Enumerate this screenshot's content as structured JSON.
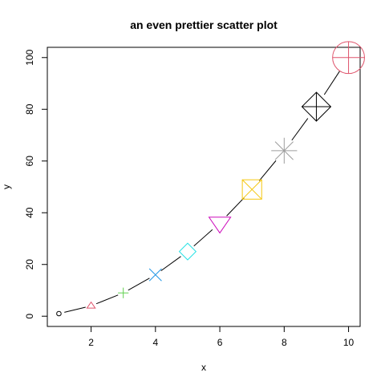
{
  "chart_data": {
    "type": "scatter",
    "title": "an even prettier scatter plot",
    "xlabel": "x",
    "ylabel": "y",
    "xlim": [
      0.64,
      10.36
    ],
    "ylim": [
      -3.96,
      103.96
    ],
    "x_ticks": [
      2,
      4,
      6,
      8,
      10
    ],
    "y_ticks": [
      0,
      20,
      40,
      60,
      80,
      100
    ],
    "grid": false,
    "x": [
      1,
      2,
      3,
      4,
      5,
      6,
      7,
      8,
      9,
      10
    ],
    "y": [
      1,
      4,
      9,
      16,
      25,
      36,
      49,
      64,
      81,
      100
    ],
    "point_symbols": [
      {
        "shape": "circle",
        "color": "#000000"
      },
      {
        "shape": "triangle-up",
        "color": "#DF536B"
      },
      {
        "shape": "plus",
        "color": "#61D04F"
      },
      {
        "shape": "cross",
        "color": "#2297E6"
      },
      {
        "shape": "diamond",
        "color": "#28E2E5"
      },
      {
        "shape": "triangle-down",
        "color": "#CD0BBC"
      },
      {
        "shape": "square-cross",
        "color": "#F5C710"
      },
      {
        "shape": "asterisk",
        "color": "#9E9E9E"
      },
      {
        "shape": "diamond-plus",
        "color": "#000000"
      },
      {
        "shape": "circle-plus",
        "color": "#DF536B"
      }
    ],
    "line": {
      "type": "b",
      "color": "#000000"
    }
  }
}
